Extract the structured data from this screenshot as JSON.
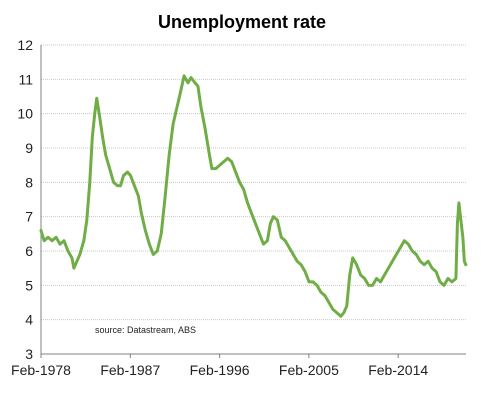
{
  "chart_data": {
    "type": "line",
    "title": "Unemployment rate",
    "xlabel": "",
    "ylabel": "",
    "annotation": "source:  Datastream, ABS",
    "ylim": [
      3,
      12
    ],
    "xlim": [
      1978.083,
      2020.917
    ],
    "y_ticks": [
      "3",
      "4",
      "5",
      "6",
      "7",
      "8",
      "9",
      "10",
      "11",
      "12"
    ],
    "x_ticks": [
      {
        "label": "Feb-1978",
        "x": 1978.083
      },
      {
        "label": "Feb-1987",
        "x": 1987.083
      },
      {
        "label": "Feb-1996",
        "x": 1996.083
      },
      {
        "label": "Feb-2005",
        "x": 2005.083
      },
      {
        "label": "Feb-2014",
        "x": 2014.083
      }
    ],
    "grid": "horizontal",
    "series": [
      {
        "color": "#70ad47",
        "points": [
          [
            1978.08,
            6.6
          ],
          [
            1978.4,
            6.3
          ],
          [
            1978.8,
            6.4
          ],
          [
            1979.2,
            6.3
          ],
          [
            1979.6,
            6.4
          ],
          [
            1980.0,
            6.2
          ],
          [
            1980.4,
            6.3
          ],
          [
            1980.8,
            6.0
          ],
          [
            1981.2,
            5.8
          ],
          [
            1981.4,
            5.5
          ],
          [
            1981.7,
            5.7
          ],
          [
            1982.0,
            5.9
          ],
          [
            1982.4,
            6.3
          ],
          [
            1982.7,
            6.9
          ],
          [
            1983.0,
            8.0
          ],
          [
            1983.25,
            9.3
          ],
          [
            1983.5,
            10.0
          ],
          [
            1983.7,
            10.45
          ],
          [
            1984.0,
            9.9
          ],
          [
            1984.3,
            9.3
          ],
          [
            1984.6,
            8.8
          ],
          [
            1985.0,
            8.4
          ],
          [
            1985.4,
            8.0
          ],
          [
            1985.8,
            7.9
          ],
          [
            1986.1,
            7.9
          ],
          [
            1986.4,
            8.2
          ],
          [
            1986.8,
            8.3
          ],
          [
            1987.1,
            8.2
          ],
          [
            1987.5,
            7.9
          ],
          [
            1987.9,
            7.6
          ],
          [
            1988.2,
            7.1
          ],
          [
            1988.6,
            6.6
          ],
          [
            1989.0,
            6.2
          ],
          [
            1989.4,
            5.9
          ],
          [
            1989.8,
            6.0
          ],
          [
            1990.2,
            6.5
          ],
          [
            1990.6,
            7.6
          ],
          [
            1991.0,
            8.8
          ],
          [
            1991.4,
            9.7
          ],
          [
            1991.8,
            10.2
          ],
          [
            1992.2,
            10.7
          ],
          [
            1992.5,
            11.1
          ],
          [
            1992.9,
            10.9
          ],
          [
            1993.2,
            11.05
          ],
          [
            1993.6,
            10.9
          ],
          [
            1993.9,
            10.8
          ],
          [
            1994.2,
            10.2
          ],
          [
            1994.6,
            9.6
          ],
          [
            1995.0,
            8.9
          ],
          [
            1995.3,
            8.4
          ],
          [
            1995.7,
            8.4
          ],
          [
            1996.1,
            8.5
          ],
          [
            1996.5,
            8.6
          ],
          [
            1996.9,
            8.7
          ],
          [
            1997.3,
            8.6
          ],
          [
            1997.7,
            8.3
          ],
          [
            1998.1,
            8.0
          ],
          [
            1998.5,
            7.8
          ],
          [
            1998.9,
            7.4
          ],
          [
            1999.3,
            7.1
          ],
          [
            1999.7,
            6.8
          ],
          [
            2000.1,
            6.5
          ],
          [
            2000.5,
            6.2
          ],
          [
            2000.9,
            6.3
          ],
          [
            2001.2,
            6.8
          ],
          [
            2001.5,
            7.0
          ],
          [
            2001.9,
            6.9
          ],
          [
            2002.3,
            6.4
          ],
          [
            2002.7,
            6.3
          ],
          [
            2003.1,
            6.1
          ],
          [
            2003.5,
            5.9
          ],
          [
            2003.9,
            5.7
          ],
          [
            2004.3,
            5.6
          ],
          [
            2004.7,
            5.4
          ],
          [
            2005.1,
            5.1
          ],
          [
            2005.5,
            5.1
          ],
          [
            2005.9,
            5.0
          ],
          [
            2006.3,
            4.8
          ],
          [
            2006.7,
            4.7
          ],
          [
            2007.1,
            4.5
          ],
          [
            2007.5,
            4.3
          ],
          [
            2007.9,
            4.2
          ],
          [
            2008.3,
            4.1
          ],
          [
            2008.6,
            4.2
          ],
          [
            2008.9,
            4.4
          ],
          [
            2009.2,
            5.3
          ],
          [
            2009.5,
            5.8
          ],
          [
            2009.9,
            5.6
          ],
          [
            2010.3,
            5.3
          ],
          [
            2010.7,
            5.2
          ],
          [
            2011.1,
            5.0
          ],
          [
            2011.5,
            5.0
          ],
          [
            2011.9,
            5.2
          ],
          [
            2012.3,
            5.1
          ],
          [
            2012.7,
            5.3
          ],
          [
            2013.1,
            5.5
          ],
          [
            2013.5,
            5.7
          ],
          [
            2013.9,
            5.9
          ],
          [
            2014.3,
            6.1
          ],
          [
            2014.7,
            6.3
          ],
          [
            2015.1,
            6.2
          ],
          [
            2015.5,
            6.0
          ],
          [
            2015.9,
            5.9
          ],
          [
            2016.3,
            5.7
          ],
          [
            2016.7,
            5.6
          ],
          [
            2017.1,
            5.7
          ],
          [
            2017.5,
            5.5
          ],
          [
            2017.9,
            5.4
          ],
          [
            2018.3,
            5.1
          ],
          [
            2018.7,
            5.0
          ],
          [
            2019.1,
            5.2
          ],
          [
            2019.5,
            5.1
          ],
          [
            2019.9,
            5.2
          ],
          [
            2020.05,
            6.8
          ],
          [
            2020.2,
            7.4
          ],
          [
            2020.4,
            6.9
          ],
          [
            2020.6,
            6.4
          ],
          [
            2020.75,
            5.7
          ],
          [
            2020.9,
            5.6
          ]
        ]
      }
    ]
  }
}
